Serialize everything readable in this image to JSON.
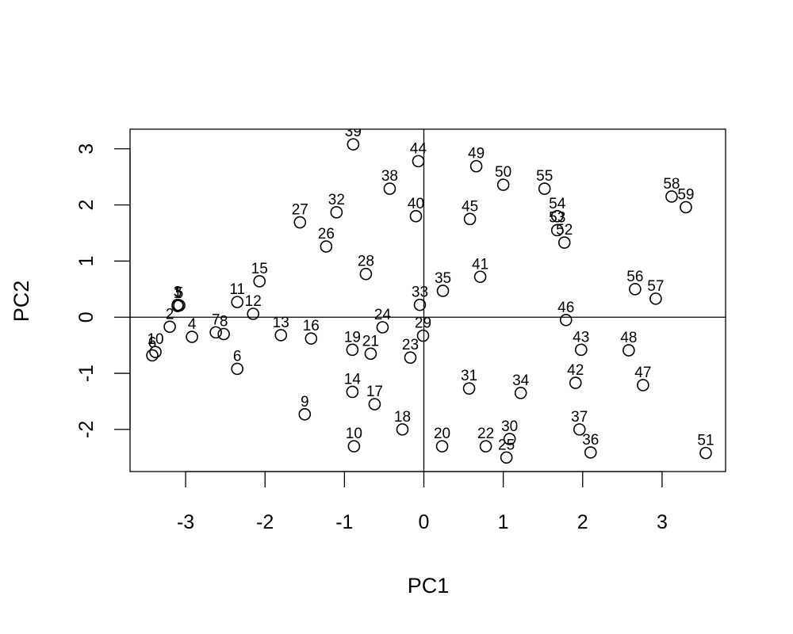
{
  "chart_data": {
    "type": "scatter",
    "title": "",
    "xlabel": "PC1",
    "ylabel": "PC2",
    "xlim": [
      -3.7,
      3.8
    ],
    "ylim": [
      -2.75,
      3.35
    ],
    "xticks": [
      -3,
      -2,
      -1,
      0,
      1,
      2,
      3
    ],
    "yticks": [
      -2,
      -1,
      0,
      1,
      2,
      3
    ],
    "grid": false,
    "reference_lines": {
      "x": 0,
      "y": 0
    },
    "points": [
      {
        "label": "1",
        "x": -3.1,
        "y": 0.2
      },
      {
        "label": "2",
        "x": -3.2,
        "y": -0.17
      },
      {
        "label": "3",
        "x": -3.1,
        "y": 0.22
      },
      {
        "label": "4",
        "x": -2.92,
        "y": -0.35
      },
      {
        "label": "5",
        "x": -3.08,
        "y": 0.21
      },
      {
        "label": "6",
        "x": -2.35,
        "y": -0.92
      },
      {
        "label": "6",
        "x": -3.42,
        "y": -0.68
      },
      {
        "label": "7",
        "x": -2.62,
        "y": -0.27
      },
      {
        "label": "8",
        "x": -2.52,
        "y": -0.3
      },
      {
        "label": "9",
        "x": -1.5,
        "y": -1.73
      },
      {
        "label": "10",
        "x": -0.88,
        "y": -2.3
      },
      {
        "label": "10",
        "x": -3.38,
        "y": -0.62
      },
      {
        "label": "11",
        "x": -2.35,
        "y": 0.27
      },
      {
        "label": "12",
        "x": -2.15,
        "y": 0.06
      },
      {
        "label": "13",
        "x": -1.8,
        "y": -0.32
      },
      {
        "label": "14",
        "x": -0.9,
        "y": -1.33
      },
      {
        "label": "15",
        "x": -2.07,
        "y": 0.64
      },
      {
        "label": "16",
        "x": -1.42,
        "y": -0.38
      },
      {
        "label": "17",
        "x": -0.62,
        "y": -1.55
      },
      {
        "label": "18",
        "x": -0.27,
        "y": -2.0
      },
      {
        "label": "19",
        "x": -0.9,
        "y": -0.58
      },
      {
        "label": "20",
        "x": 0.23,
        "y": -2.3
      },
      {
        "label": "21",
        "x": -0.67,
        "y": -0.65
      },
      {
        "label": "22",
        "x": 0.78,
        "y": -2.3
      },
      {
        "label": "23",
        "x": -0.17,
        "y": -0.72
      },
      {
        "label": "24",
        "x": -0.52,
        "y": -0.18
      },
      {
        "label": "25",
        "x": 1.04,
        "y": -2.5
      },
      {
        "label": "26",
        "x": -1.23,
        "y": 1.26
      },
      {
        "label": "27",
        "x": -1.56,
        "y": 1.69
      },
      {
        "label": "28",
        "x": -0.73,
        "y": 0.77
      },
      {
        "label": "29",
        "x": -0.01,
        "y": -0.33
      },
      {
        "label": "30",
        "x": 1.08,
        "y": -2.17
      },
      {
        "label": "31",
        "x": 0.57,
        "y": -1.27
      },
      {
        "label": "32",
        "x": -1.1,
        "y": 1.87
      },
      {
        "label": "33",
        "x": -0.05,
        "y": 0.22
      },
      {
        "label": "34",
        "x": 1.22,
        "y": -1.35
      },
      {
        "label": "35",
        "x": 0.24,
        "y": 0.47
      },
      {
        "label": "36",
        "x": 2.1,
        "y": -2.41
      },
      {
        "label": "37",
        "x": 1.96,
        "y": -2.0
      },
      {
        "label": "38",
        "x": -0.43,
        "y": 2.29
      },
      {
        "label": "39",
        "x": -0.89,
        "y": 3.08
      },
      {
        "label": "40",
        "x": -0.1,
        "y": 1.8
      },
      {
        "label": "41",
        "x": 0.71,
        "y": 0.72
      },
      {
        "label": "42",
        "x": 1.91,
        "y": -1.17
      },
      {
        "label": "43",
        "x": 1.98,
        "y": -0.58
      },
      {
        "label": "44",
        "x": -0.07,
        "y": 2.78
      },
      {
        "label": "45",
        "x": 0.58,
        "y": 1.75
      },
      {
        "label": "46",
        "x": 1.79,
        "y": -0.05
      },
      {
        "label": "47",
        "x": 2.76,
        "y": -1.21
      },
      {
        "label": "48",
        "x": 2.58,
        "y": -0.59
      },
      {
        "label": "49",
        "x": 0.66,
        "y": 2.69
      },
      {
        "label": "50",
        "x": 1.0,
        "y": 2.36
      },
      {
        "label": "51",
        "x": 3.55,
        "y": -2.42
      },
      {
        "label": "52",
        "x": 1.77,
        "y": 1.33
      },
      {
        "label": "53",
        "x": 1.68,
        "y": 1.55
      },
      {
        "label": "54",
        "x": 1.68,
        "y": 1.8
      },
      {
        "label": "55",
        "x": 1.52,
        "y": 2.29
      },
      {
        "label": "56",
        "x": 2.66,
        "y": 0.5
      },
      {
        "label": "57",
        "x": 2.92,
        "y": 0.33
      },
      {
        "label": "58",
        "x": 3.12,
        "y": 2.15
      },
      {
        "label": "59",
        "x": 3.3,
        "y": 1.96
      }
    ]
  }
}
